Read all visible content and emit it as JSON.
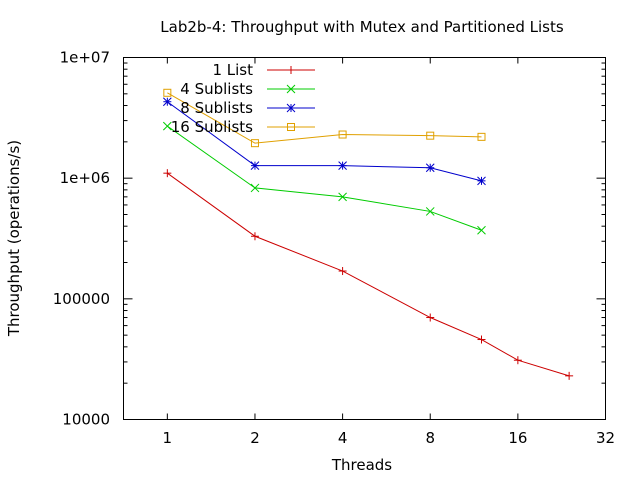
{
  "chart_data": {
    "type": "line",
    "title": "Lab2b-4: Throughput with Mutex and Partitioned Lists",
    "xlabel": "Threads",
    "ylabel": "Throughput (operations/s)",
    "x_scale": "log2",
    "y_scale": "log10",
    "xlim": [
      0.707,
      32
    ],
    "ylim": [
      10000,
      10000000
    ],
    "x_ticks": [
      {
        "value": 1,
        "label": "1"
      },
      {
        "value": 2,
        "label": "2"
      },
      {
        "value": 4,
        "label": "4"
      },
      {
        "value": 8,
        "label": "8"
      },
      {
        "value": 16,
        "label": "16"
      },
      {
        "value": 32,
        "label": "32"
      }
    ],
    "y_ticks": [
      {
        "value": 10000,
        "label": "10000"
      },
      {
        "value": 100000,
        "label": "100000"
      },
      {
        "value": 1000000,
        "label": "1e+06"
      },
      {
        "value": 10000000,
        "label": "1e+07"
      }
    ],
    "grid": false,
    "legend_position": "top-left",
    "series": [
      {
        "name": "1 List",
        "color": "#cc0000",
        "marker": "plus",
        "x": [
          1,
          2,
          4,
          8,
          12,
          16,
          24
        ],
        "y": [
          1100000,
          330000,
          170000,
          70000,
          46000,
          31000,
          23000
        ]
      },
      {
        "name": "4 Sublists",
        "color": "#00cc00",
        "marker": "cross",
        "x": [
          1,
          2,
          4,
          8,
          12
        ],
        "y": [
          2700000,
          830000,
          700000,
          530000,
          370000
        ]
      },
      {
        "name": "8 Sublists",
        "color": "#0000cc",
        "marker": "star",
        "x": [
          1,
          2,
          4,
          8,
          12
        ],
        "y": [
          4300000,
          1270000,
          1270000,
          1220000,
          950000
        ]
      },
      {
        "name": "16 Sublists",
        "color": "#e0a000",
        "marker": "square",
        "x": [
          1,
          2,
          4,
          8,
          12
        ],
        "y": [
          5100000,
          1950000,
          2300000,
          2250000,
          2200000
        ]
      }
    ]
  }
}
